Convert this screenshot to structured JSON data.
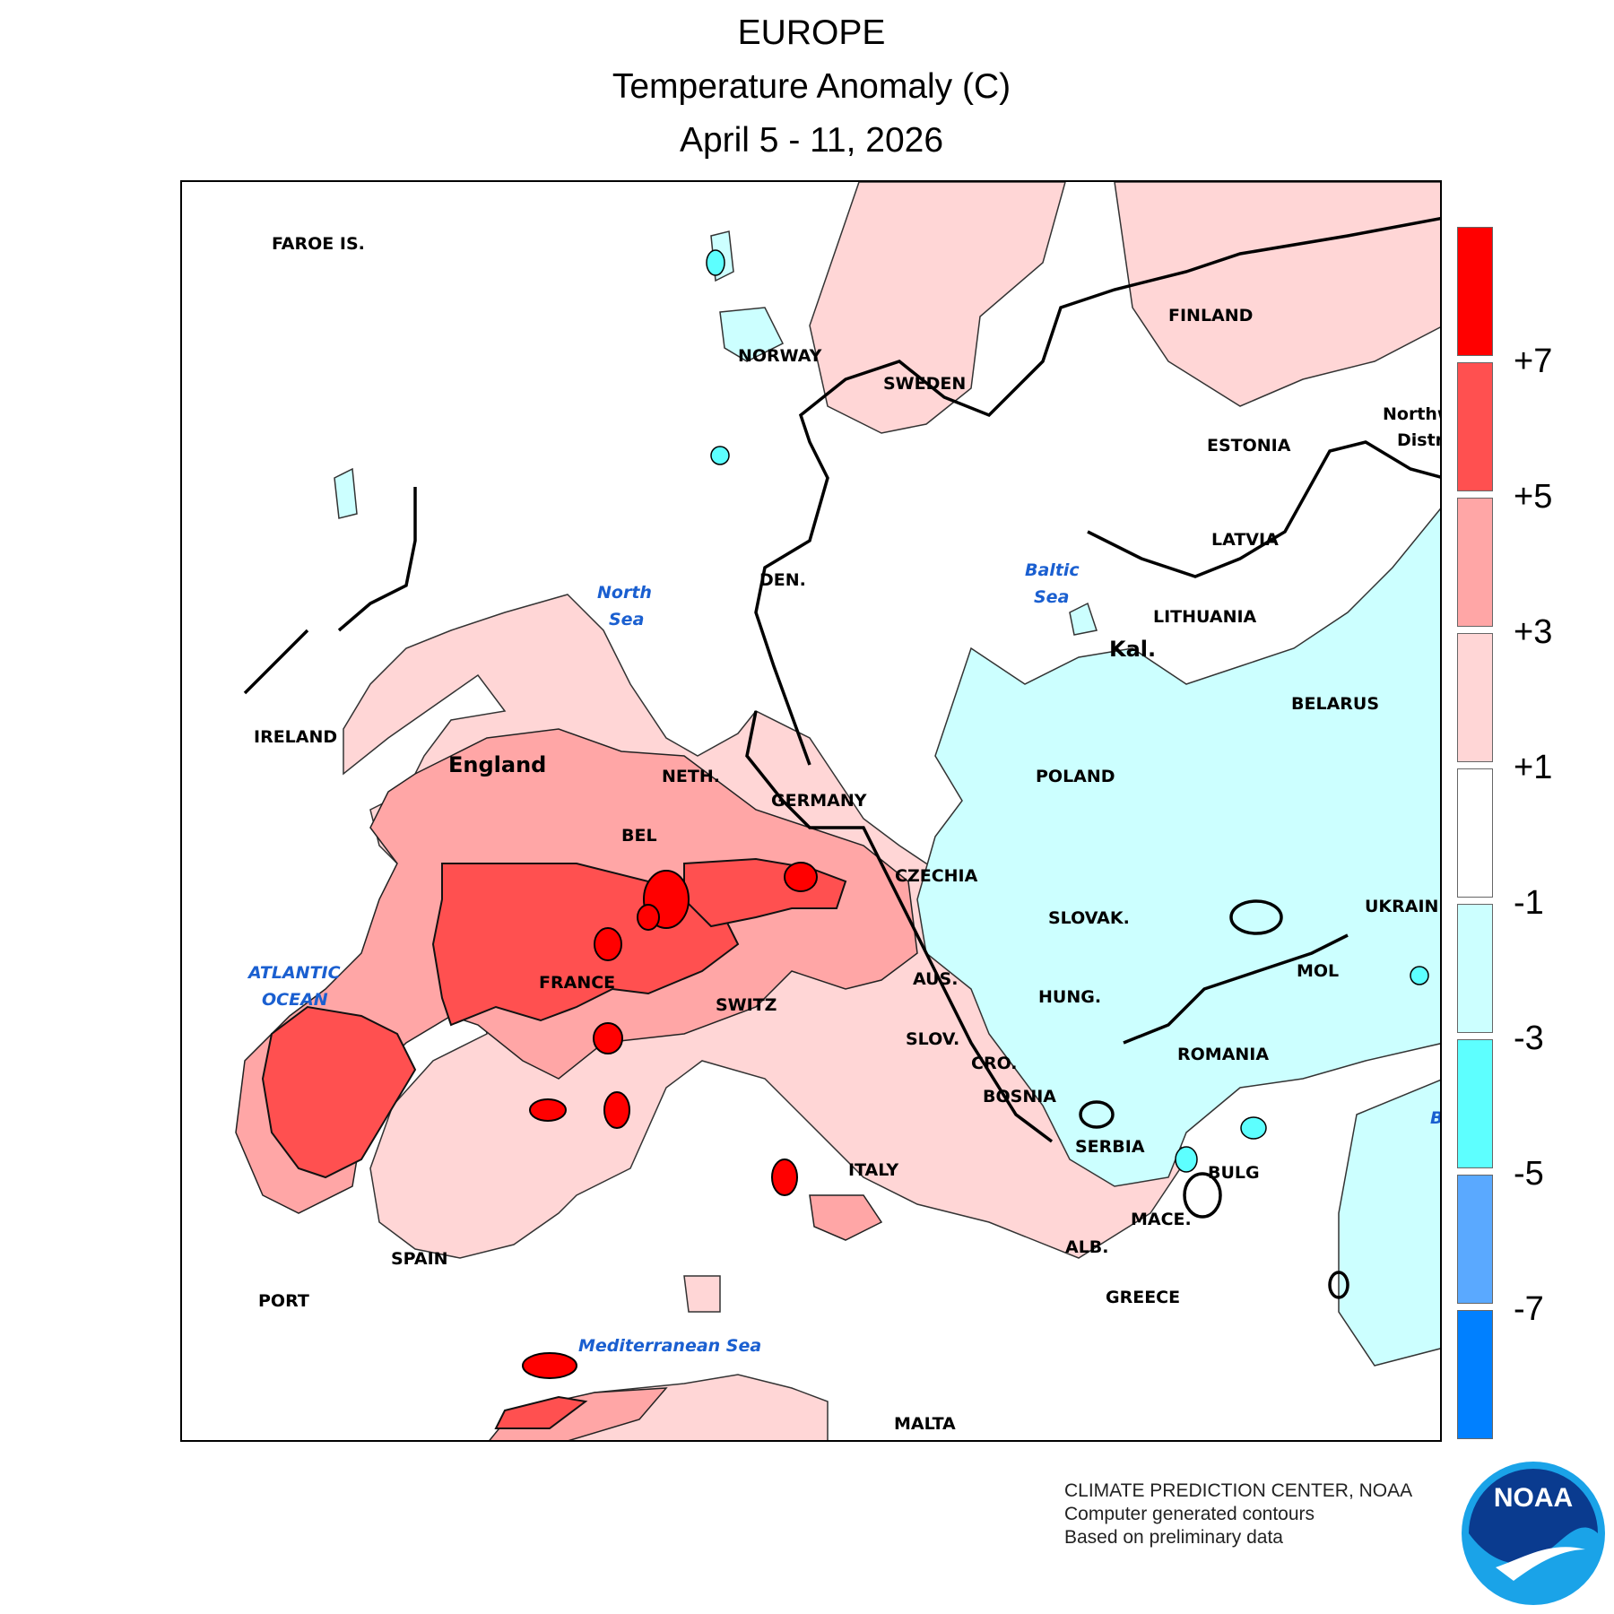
{
  "header": {
    "line1": "EUROPE",
    "line2": "Temperature Anomaly (C)",
    "line3": "April 5 - 11, 2026"
  },
  "map": {
    "countries": {
      "faroe": "FAROE IS.",
      "norway": "NORWAY",
      "sweden": "SWEDEN",
      "finland": "FINLAND",
      "estonia": "ESTONIA",
      "latvia": "LATVIA",
      "lithuania": "LITHUANIA",
      "kal": "Kal.",
      "belarus": "BELARUS",
      "northwest": "Northw",
      "district": "Distri",
      "ireland": "IRELAND",
      "england": "England",
      "denmark": "DEN.",
      "netherlands": "NETH.",
      "belgium": "BEL",
      "germany": "GERMANY",
      "poland": "POLAND",
      "czechia": "CZECHIA",
      "slovakia": "SLOVAK.",
      "ukraine": "UKRAINE",
      "moldova": "MOL",
      "france": "FRANCE",
      "switzerland": "SWITZ",
      "austria": "AUS.",
      "hungary": "HUNG.",
      "slovenia": "SLOV.",
      "croatia": "CRO.",
      "bosnia": "BOSNIA",
      "romania": "ROMANIA",
      "serbia": "SERBIA",
      "bulgaria": "BULG",
      "macedonia": "MACE.",
      "albania": "ALB.",
      "greece": "GREECE",
      "italy": "ITALY",
      "spain": "SPAIN",
      "portugal": "PORT",
      "malta": "MALTA"
    },
    "seas": {
      "north_1": "North",
      "north_2": "Sea",
      "baltic_1": "Baltic",
      "baltic_2": "Sea",
      "atlantic_1": "ATLANTIC",
      "atlantic_2": "OCEAN",
      "med": "Mediterranean Sea",
      "black_partial": "B"
    }
  },
  "legend": {
    "colors": [
      "#ff0000",
      "#ff5050",
      "#ffa6a6",
      "#ffd6d6",
      "#ffffff",
      "#ccffff",
      "#5dffff",
      "#5aa9ff",
      "#0080ff"
    ],
    "ticks": [
      "+7",
      "+5",
      "+3",
      "+1",
      "-1",
      "-3",
      "-5",
      "-7"
    ]
  },
  "colors": {
    "plus1_3": "#ffd6d6",
    "plus3_5": "#ffa6a6",
    "plus5_7": "#ff5050",
    "plus7": "#ff0000",
    "minus1_3": "#ccffff",
    "minus3_5": "#5dffff",
    "sea_label": "#1a5fd0",
    "noaa_blue": "#0a3b8f",
    "noaa_cyan": "#1aa3e8"
  },
  "footer": {
    "line1": "CLIMATE PREDICTION CENTER, NOAA",
    "line2": "Computer generated contours",
    "line3": "Based on preliminary data"
  },
  "logo": {
    "text": "NOAA"
  }
}
